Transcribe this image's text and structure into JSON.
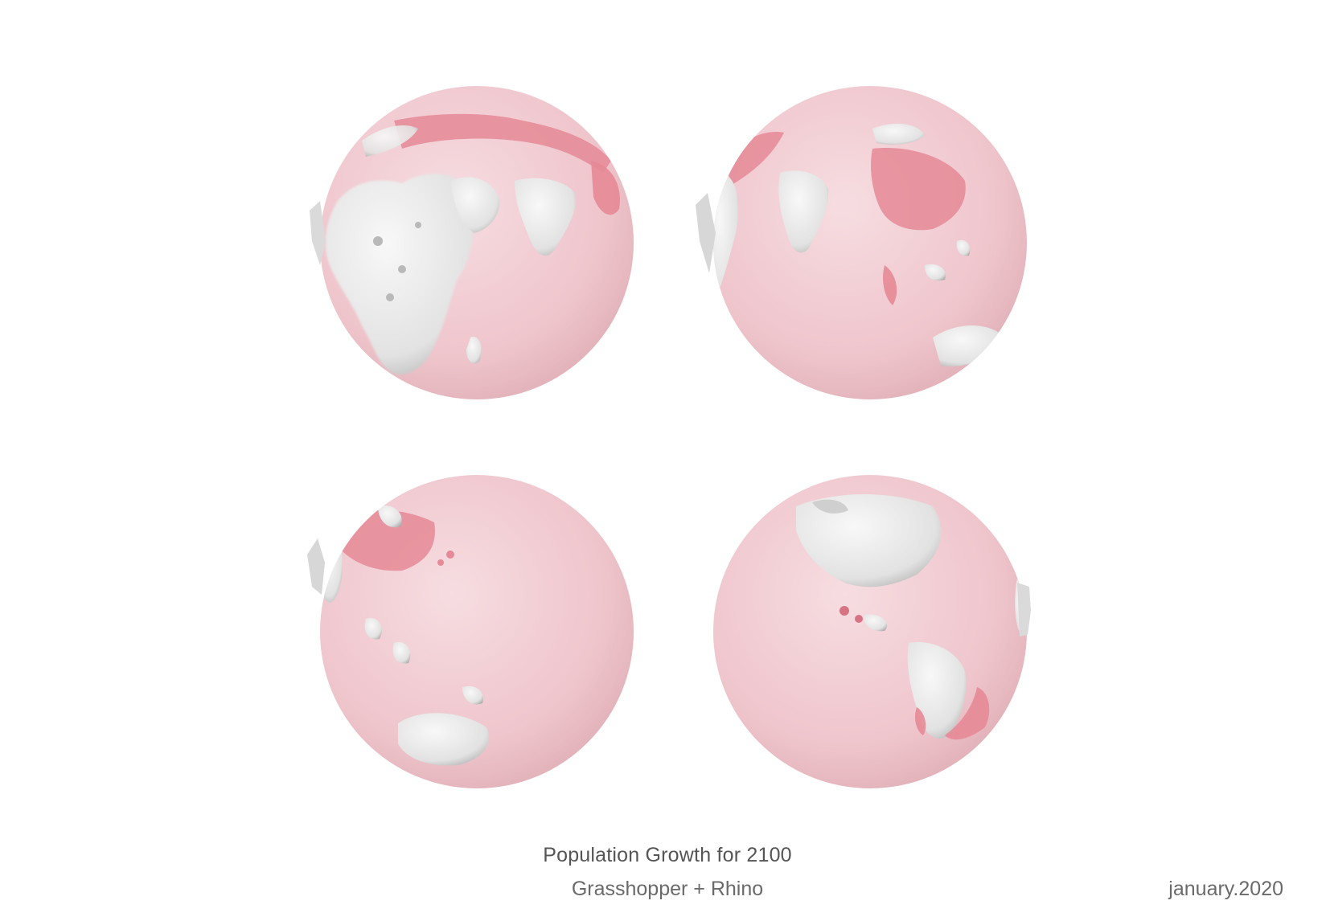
{
  "caption": {
    "title": "Population Growth for 2100",
    "subtitle": "Grasshopper + Rhino",
    "date": "january.2020"
  },
  "colors": {
    "globe_base": "#f0c9cf",
    "globe_shadow": "#d9a9b1",
    "land_relief": "#ececec",
    "land_shade": "#9e9e9e",
    "growth_highlight": "#e58a96"
  },
  "globes": [
    {
      "name": "globe-africa-europe-asia"
    },
    {
      "name": "globe-asia-oceania"
    },
    {
      "name": "globe-pacific-australia"
    },
    {
      "name": "globe-americas"
    }
  ]
}
